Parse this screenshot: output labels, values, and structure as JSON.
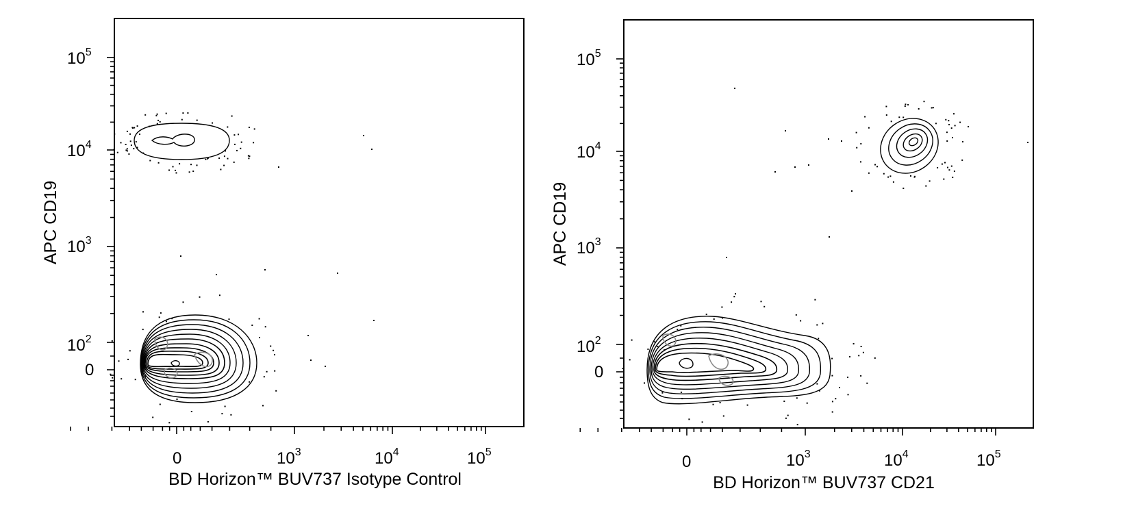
{
  "chart_data": [
    {
      "type": "scatter",
      "subtype": "flow-cytometry-contour",
      "xlabel": "BD Horizon™ BUV737 Isotype Control",
      "ylabel": "APC CD19",
      "x_scale": "biexponential",
      "y_scale": "biexponential",
      "x_ticks": [
        {
          "value": 0,
          "label": "0"
        },
        {
          "value": 1000,
          "label": "10",
          "exp": "3"
        },
        {
          "value": 10000,
          "label": "10",
          "exp": "4"
        },
        {
          "value": 100000,
          "label": "10",
          "exp": "5"
        }
      ],
      "y_ticks": [
        {
          "value": 0,
          "label": "0"
        },
        {
          "value": 100,
          "label": "10",
          "exp": "2"
        },
        {
          "value": 1000,
          "label": "10",
          "exp": "3"
        },
        {
          "value": 10000,
          "label": "10",
          "exp": "4"
        },
        {
          "value": 100000,
          "label": "10",
          "exp": "5"
        }
      ],
      "populations": [
        {
          "name": "",
          "x_center": 0,
          "y_center": 12000,
          "x_range": [
            -200,
            300
          ],
          "y_range": [
            6000,
            20000
          ]
        },
        {
          "name": "",
          "x_center": 0,
          "y_center": 10,
          "x_range": [
            -200,
            500
          ],
          "y_range": [
            -150,
            200
          ]
        }
      ],
      "grid": false,
      "legend": "none"
    },
    {
      "type": "scatter",
      "subtype": "flow-cytometry-contour",
      "xlabel": "BD Horizon™ BUV737 CD21",
      "ylabel": "APC CD19",
      "x_scale": "biexponential",
      "y_scale": "biexponential",
      "x_ticks": [
        {
          "value": 0,
          "label": "0"
        },
        {
          "value": 1000,
          "label": "10",
          "exp": "3"
        },
        {
          "value": 10000,
          "label": "10",
          "exp": "4"
        },
        {
          "value": 100000,
          "label": "10",
          "exp": "5"
        }
      ],
      "y_ticks": [
        {
          "value": 0,
          "label": "0"
        },
        {
          "value": 100,
          "label": "10",
          "exp": "2"
        },
        {
          "value": 1000,
          "label": "10",
          "exp": "3"
        },
        {
          "value": 10000,
          "label": "10",
          "exp": "4"
        },
        {
          "value": 100000,
          "label": "10",
          "exp": "5"
        }
      ],
      "populations": [
        {
          "name": "",
          "x_center": 13000,
          "y_center": 12000,
          "x_range": [
            6000,
            30000
          ],
          "y_range": [
            5000,
            25000
          ]
        },
        {
          "name": "",
          "x_center": 0,
          "y_center": 10,
          "x_range": [
            -200,
            1800
          ],
          "y_range": [
            -150,
            200
          ]
        }
      ],
      "grid": false,
      "legend": "none"
    }
  ]
}
